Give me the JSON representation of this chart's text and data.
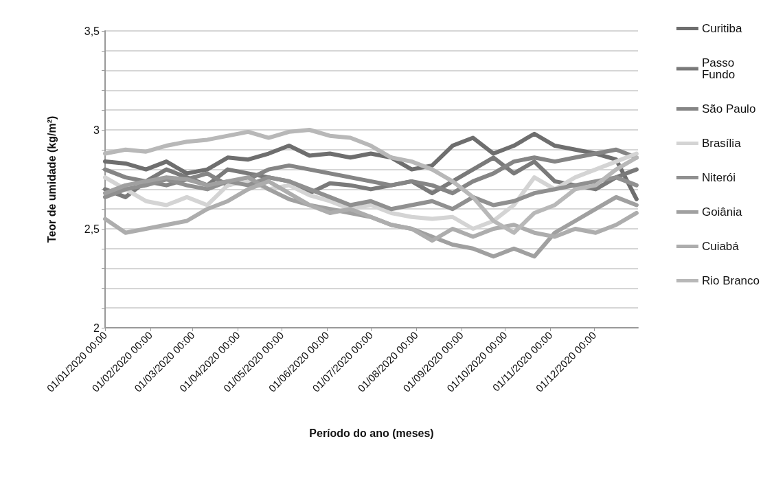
{
  "chart_data": {
    "type": "line",
    "xlabel": "Período do ano (meses)",
    "ylabel": "Teor de umidade (kg/m²)",
    "x": [
      "2020-01-01",
      "2020-01-15",
      "2020-01-29",
      "2020-02-12",
      "2020-02-26",
      "2020-03-11",
      "2020-03-25",
      "2020-04-08",
      "2020-04-22",
      "2020-05-06",
      "2020-05-20",
      "2020-06-03",
      "2020-06-17",
      "2020-07-01",
      "2020-07-15",
      "2020-07-29",
      "2020-08-12",
      "2020-08-26",
      "2020-09-09",
      "2020-09-23",
      "2020-10-07",
      "2020-10-21",
      "2020-11-04",
      "2020-11-18",
      "2020-12-02",
      "2020-12-16",
      "2020-12-30"
    ],
    "series": [
      {
        "name": "Curitiba",
        "color": "#6e6e6e",
        "values": [
          2.84,
          2.83,
          2.8,
          2.84,
          2.78,
          2.8,
          2.86,
          2.85,
          2.88,
          2.92,
          2.87,
          2.88,
          2.86,
          2.88,
          2.86,
          2.8,
          2.82,
          2.92,
          2.96,
          2.88,
          2.92,
          2.98,
          2.92,
          2.9,
          2.88,
          2.85,
          2.65
        ]
      },
      {
        "name": "Passo Fundo",
        "color": "#7a7a7a",
        "values": [
          2.7,
          2.66,
          2.74,
          2.8,
          2.76,
          2.72,
          2.8,
          2.78,
          2.76,
          2.74,
          2.68,
          2.73,
          2.72,
          2.7,
          2.72,
          2.74,
          2.68,
          2.74,
          2.8,
          2.86,
          2.78,
          2.84,
          2.74,
          2.72,
          2.7,
          2.76,
          2.8
        ]
      },
      {
        "name": "São Paulo",
        "color": "#858585",
        "values": [
          2.8,
          2.76,
          2.74,
          2.72,
          2.75,
          2.78,
          2.72,
          2.75,
          2.8,
          2.82,
          2.8,
          2.78,
          2.76,
          2.74,
          2.72,
          2.74,
          2.72,
          2.68,
          2.74,
          2.78,
          2.84,
          2.86,
          2.84,
          2.86,
          2.88,
          2.9,
          2.86
        ]
      },
      {
        "name": "Brasília",
        "color": "#d4d4d4",
        "values": [
          2.76,
          2.7,
          2.64,
          2.62,
          2.66,
          2.62,
          2.72,
          2.74,
          2.7,
          2.72,
          2.67,
          2.64,
          2.6,
          2.62,
          2.58,
          2.56,
          2.55,
          2.56,
          2.5,
          2.54,
          2.62,
          2.76,
          2.7,
          2.76,
          2.8,
          2.84,
          2.88
        ]
      },
      {
        "name": "Niterói",
        "color": "#909090",
        "values": [
          2.66,
          2.7,
          2.72,
          2.75,
          2.72,
          2.7,
          2.74,
          2.72,
          2.76,
          2.74,
          2.7,
          2.66,
          2.62,
          2.64,
          2.6,
          2.62,
          2.64,
          2.6,
          2.66,
          2.62,
          2.64,
          2.68,
          2.7,
          2.72,
          2.74,
          2.76,
          2.72
        ]
      },
      {
        "name": "Goiânia",
        "color": "#a0a0a0",
        "values": [
          2.68,
          2.72,
          2.74,
          2.76,
          2.75,
          2.72,
          2.74,
          2.76,
          2.7,
          2.65,
          2.62,
          2.6,
          2.58,
          2.56,
          2.52,
          2.5,
          2.46,
          2.42,
          2.4,
          2.36,
          2.4,
          2.36,
          2.48,
          2.54,
          2.6,
          2.66,
          2.62
        ]
      },
      {
        "name": "Cuiabá",
        "color": "#adadad",
        "values": [
          2.55,
          2.48,
          2.5,
          2.52,
          2.54,
          2.6,
          2.64,
          2.7,
          2.74,
          2.68,
          2.62,
          2.58,
          2.6,
          2.56,
          2.52,
          2.5,
          2.44,
          2.5,
          2.46,
          2.5,
          2.52,
          2.48,
          2.46,
          2.5,
          2.48,
          2.52,
          2.58
        ]
      },
      {
        "name": "Rio Branco",
        "color": "#b8b8b8",
        "values": [
          2.88,
          2.9,
          2.89,
          2.92,
          2.94,
          2.95,
          2.97,
          2.99,
          2.96,
          2.99,
          3.0,
          2.97,
          2.96,
          2.92,
          2.86,
          2.84,
          2.8,
          2.74,
          2.66,
          2.54,
          2.48,
          2.58,
          2.62,
          2.7,
          2.72,
          2.8,
          2.86
        ]
      }
    ],
    "xlim": [
      "2020-01-01",
      "2020-12-31"
    ],
    "xticks": [
      {
        "value": "2020-01-01",
        "label": "01/01/2020 00:00"
      },
      {
        "value": "2020-02-01",
        "label": "01/02/2020 00:00"
      },
      {
        "value": "2020-03-01",
        "label": "01/03/2020 00:00"
      },
      {
        "value": "2020-04-01",
        "label": "01/04/2020 00:00"
      },
      {
        "value": "2020-05-01",
        "label": "01/05/2020 00:00"
      },
      {
        "value": "2020-06-01",
        "label": "01/06/2020 00:00"
      },
      {
        "value": "2020-07-01",
        "label": "01/07/2020 00:00"
      },
      {
        "value": "2020-08-01",
        "label": "01/08/2020 00:00"
      },
      {
        "value": "2020-09-01",
        "label": "01/09/2020 00:00"
      },
      {
        "value": "2020-10-01",
        "label": "01/10/2020 00:00"
      },
      {
        "value": "2020-11-01",
        "label": "01/11/2020 00:00"
      },
      {
        "value": "2020-12-01",
        "label": "01/12/2020 00:00"
      }
    ],
    "ylim": [
      2,
      3.5
    ],
    "yticks": [
      2,
      {
        "value": 2.1,
        "label": null
      },
      {
        "value": 2.2,
        "label": null
      },
      {
        "value": 2.3,
        "label": null
      },
      {
        "value": 2.4,
        "label": null
      },
      {
        "value": 2.5,
        "label": "2,5"
      },
      {
        "value": 2.6,
        "label": null
      },
      {
        "value": 2.7,
        "label": null
      },
      {
        "value": 2.8,
        "label": null
      },
      {
        "value": 2.9,
        "label": null
      },
      3,
      {
        "value": 3.1,
        "label": null
      },
      {
        "value": 3.2,
        "label": null
      },
      {
        "value": 3.3,
        "label": null
      },
      {
        "value": 3.4,
        "label": null
      },
      {
        "value": 3.5,
        "label": "3,5"
      }
    ],
    "grid": "y",
    "legend": "right",
    "marker": "none",
    "line_style": "solid"
  }
}
